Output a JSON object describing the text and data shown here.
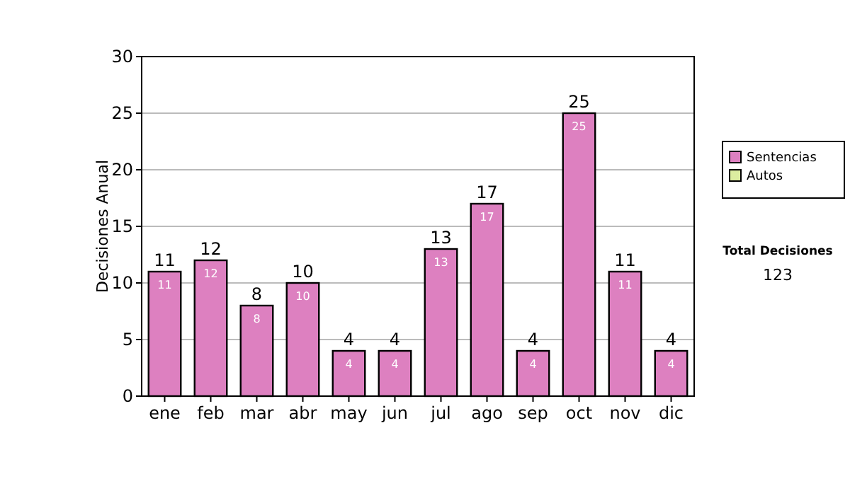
{
  "chart_data": {
    "type": "bar",
    "ylabel": "Decisiones Anual",
    "categories": [
      "ene",
      "feb",
      "mar",
      "abr",
      "may",
      "jun",
      "jul",
      "ago",
      "sep",
      "oct",
      "nov",
      "dic"
    ],
    "series": [
      {
        "name": "Sentencias",
        "color": "#dd80c0",
        "values": [
          11,
          12,
          8,
          10,
          4,
          4,
          13,
          17,
          4,
          25,
          11,
          4
        ],
        "value_labels": [
          "11",
          "12",
          "8",
          "10",
          "4",
          "4",
          "13",
          "17",
          "4",
          "25",
          "11",
          "4"
        ]
      },
      {
        "name": "Autos",
        "color": "#dcedA0",
        "values": [
          0,
          0,
          0,
          0,
          0,
          0,
          0,
          0,
          0,
          0,
          0,
          0
        ]
      }
    ],
    "stacked": true,
    "totals": [
      "11",
      "12",
      "8",
      "10",
      "4",
      "4",
      "13",
      "17",
      "4",
      "25",
      "11",
      "4"
    ],
    "ylim": [
      0,
      30
    ],
    "yticks": [
      0,
      5,
      10,
      15,
      20,
      25,
      30
    ],
    "grid": "y",
    "legend": "right",
    "annotations": [
      "Total Decisiones",
      "123"
    ]
  }
}
